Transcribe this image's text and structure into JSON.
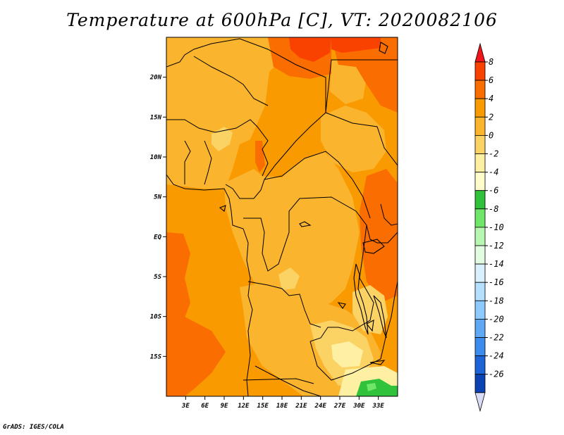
{
  "title": "Temperature at 600hPa [C], VT: 2020082106",
  "footer": "GrADS: IGES/COLA",
  "map": {
    "lon_range": [
      0,
      36
    ],
    "lat_range": [
      -20,
      25
    ],
    "lat_ticks": [
      {
        "value": 20,
        "label": "20N"
      },
      {
        "value": 15,
        "label": "15N"
      },
      {
        "value": 10,
        "label": "10N"
      },
      {
        "value": 5,
        "label": "5N"
      },
      {
        "value": 0,
        "label": "EQ"
      },
      {
        "value": -5,
        "label": "5S"
      },
      {
        "value": -10,
        "label": "10S"
      },
      {
        "value": -15,
        "label": "15S"
      }
    ],
    "lon_ticks": [
      {
        "value": 3,
        "label": "3E"
      },
      {
        "value": 6,
        "label": "6E"
      },
      {
        "value": 9,
        "label": "9E"
      },
      {
        "value": 12,
        "label": "12E"
      },
      {
        "value": 15,
        "label": "15E"
      },
      {
        "value": 18,
        "label": "18E"
      },
      {
        "value": 21,
        "label": "21E"
      },
      {
        "value": 24,
        "label": "24E"
      },
      {
        "value": 27,
        "label": "27E"
      },
      {
        "value": 30,
        "label": "30E"
      },
      {
        "value": 33,
        "label": "33E"
      }
    ]
  },
  "colorbar": {
    "labels": [
      "8",
      "6",
      "4",
      "2",
      "0",
      "-2",
      "-4",
      "-6",
      "-8",
      "-10",
      "-12",
      "-14",
      "-16",
      "-18",
      "-20",
      "-22",
      "-24",
      "-26"
    ],
    "colors": [
      "#f0161c",
      "#fa4200",
      "#fa6d00",
      "#f99a00",
      "#fab42d",
      "#fbd264",
      "#fef0a2",
      "#fffccb",
      "#2fc23a",
      "#6fe66a",
      "#b8f7b2",
      "#e1fce0",
      "#d9f1ff",
      "#b5e0ff",
      "#8ecaff",
      "#5fa8f6",
      "#3c8bed",
      "#1d64d9",
      "#0c43b4",
      "#07138a"
    ]
  },
  "map_colors": {
    "c_0_2": "#fab42d",
    "c_2_4": "#f99a00",
    "c_4_6": "#fa6d00",
    "c_6_8": "#fa4200",
    "c_n2_0": "#fbd264",
    "c_n4_n2": "#fef0a2",
    "c_green": "#2fc23a",
    "c_green_light": "#6fe66a"
  }
}
